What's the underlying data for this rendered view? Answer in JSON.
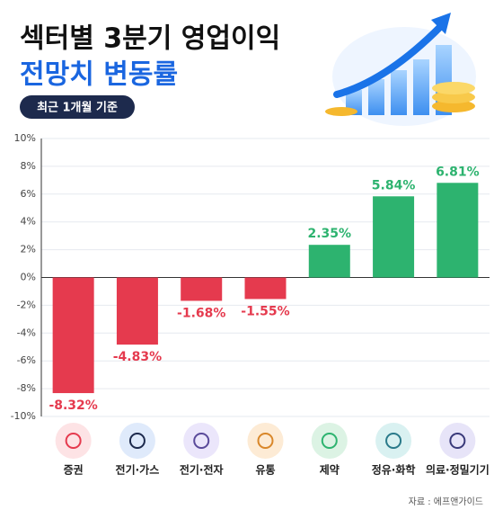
{
  "chart_data": {
    "type": "bar",
    "title": "섹터별 3분기 영업이익",
    "subtitle": "전망치 변동률",
    "badge": "최근 1개월 기준",
    "source": "자료 : 에프앤가이드",
    "categories": [
      "증권",
      "전기·가스",
      "전기·전자",
      "유통",
      "제약",
      "정유·화학",
      "의료·정밀기기"
    ],
    "values": [
      -8.32,
      -4.83,
      -1.68,
      -1.55,
      2.35,
      5.84,
      6.81
    ],
    "value_labels": [
      "-8.32%",
      "-4.83%",
      "-1.68%",
      "-1.55%",
      "2.35%",
      "5.84%",
      "6.81%"
    ],
    "positive_color": "#2db36f",
    "negative_color": "#e53a4e",
    "ylim": [
      -10,
      10
    ],
    "yticks": [
      {
        "value": -10,
        "label": "-10%"
      },
      {
        "value": -8,
        "label": "-8%"
      },
      {
        "value": -6,
        "label": "-6%"
      },
      {
        "value": -4,
        "label": "-4%"
      },
      {
        "value": -2,
        "label": "-2%"
      },
      {
        "value": 0,
        "label": "0%"
      },
      {
        "value": 2,
        "label": "2%"
      },
      {
        "value": 4,
        "label": "4%"
      },
      {
        "value": 6,
        "label": "6%"
      },
      {
        "value": 8,
        "label": "8%"
      },
      {
        "value": 10,
        "label": "10%"
      }
    ],
    "grid": true
  }
}
